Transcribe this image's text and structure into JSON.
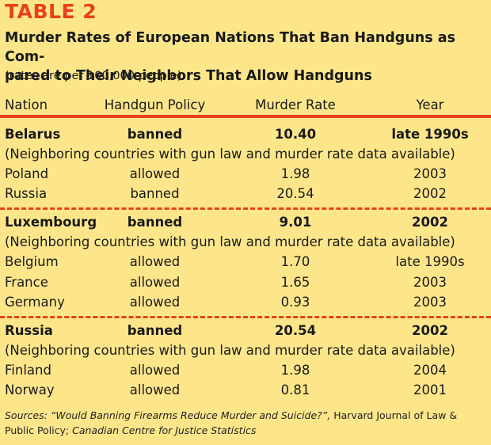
{
  "label": "TABLE 2",
  "title": "Murder Rates of European Nations That Ban Handguns as Com-pared to Their Neighbors That Allow Handguns",
  "title_line1": "Murder Rates of European Nations That Ban Handguns as Com-",
  "title_line2": "pared to Their Neighbors That Allow Handguns",
  "subtitle": "(rates are per 100,000 people)",
  "headers": [
    "Nation",
    "Handgun Policy",
    "Murder Rate",
    "Year"
  ],
  "neighbor_note": "(Neighboring countries with gun law and murder rate data available)",
  "groups": [
    {
      "main": {
        "nation": "Belarus",
        "policy": "banned",
        "rate": "10.40",
        "year": "late 1990s"
      },
      "neighbors": [
        {
          "nation": "Poland",
          "policy": "allowed",
          "rate": "1.98",
          "year": "2003"
        },
        {
          "nation": "Russia",
          "policy": "banned",
          "rate": "20.54",
          "year": "2002"
        }
      ]
    },
    {
      "main": {
        "nation": "Luxembourg",
        "policy": "banned",
        "rate": "9.01",
        "year": "2002"
      },
      "neighbors": [
        {
          "nation": "Belgium",
          "policy": "allowed",
          "rate": "1.70",
          "year": "late 1990s"
        },
        {
          "nation": "France",
          "policy": "allowed",
          "rate": "1.65",
          "year": "2003"
        },
        {
          "nation": "Germany",
          "policy": "allowed",
          "rate": "0.93",
          "year": "2003"
        }
      ]
    },
    {
      "main": {
        "nation": "Russia",
        "policy": "banned",
        "rate": "20.54",
        "year": "2002"
      },
      "neighbors": [
        {
          "nation": "Finland",
          "policy": "allowed",
          "rate": "1.98",
          "year": "2004"
        },
        {
          "nation": "Norway",
          "policy": "allowed",
          "rate": "0.81",
          "year": "2001"
        }
      ]
    }
  ],
  "sources": {
    "prefix": "Sources: “Would Banning Firearms Reduce Murder and Suicide?”,",
    "middle": " Harvard Journal of Law & Public Policy; ",
    "suffix": "Canadian Centre for Justice Statistics"
  },
  "colors": {
    "background": "#fde68a",
    "accent": "#e8401c",
    "text": "#1a1a1a"
  }
}
